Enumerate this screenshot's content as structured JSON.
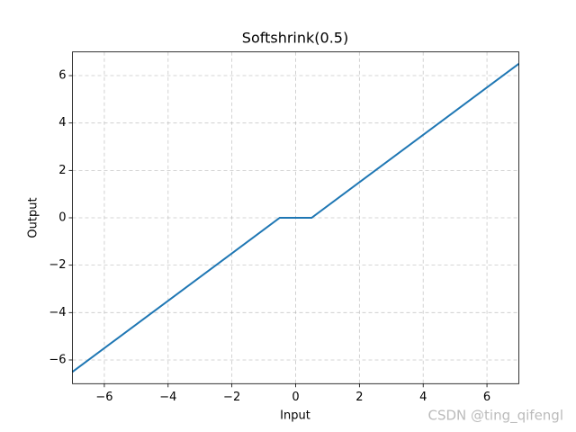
{
  "chart_data": {
    "type": "line",
    "title": "Softshrink(0.5)",
    "xlabel": "Input",
    "ylabel": "Output",
    "x": [
      -7,
      -0.5,
      0.5,
      7
    ],
    "series": [
      {
        "color": "#1f77b4",
        "values": [
          -6.5,
          0,
          0,
          6.5
        ]
      }
    ],
    "xlim": [
      -7,
      7
    ],
    "ylim": [
      -7,
      7
    ],
    "xticks": [
      {
        "value": -6,
        "label": "−6"
      },
      {
        "value": -4,
        "label": "−4"
      },
      {
        "value": -2,
        "label": "−2"
      },
      0,
      2,
      4,
      6
    ],
    "yticks": [
      {
        "value": -6,
        "label": "−6"
      },
      {
        "value": -4,
        "label": "−4"
      },
      {
        "value": -2,
        "label": "−2"
      },
      0,
      2,
      4,
      6
    ],
    "grid": true,
    "watermark": "CSDN @ting_qifengl"
  }
}
